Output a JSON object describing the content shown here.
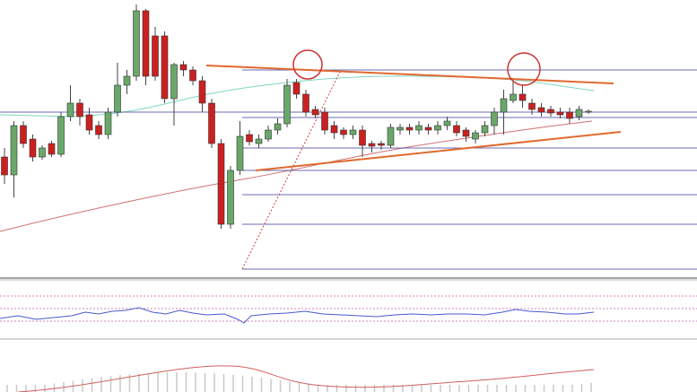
{
  "chart_data": {
    "type": "candlestick",
    "ylim": [
      0,
      310
    ],
    "up_color": "#6aa86a",
    "down_color": "#cc2020",
    "open": [
      135,
      115,
      170,
      155,
      135,
      150,
      138,
      180,
      195,
      182,
      170,
      160,
      185,
      215,
      225,
      298,
      270,
      270,
      200,
      238,
      232,
      220,
      195,
      150,
      60,
      120,
      160,
      150,
      155,
      165,
      172,
      218,
      205,
      188,
      185,
      170,
      165,
      160,
      165,
      150,
      150,
      148,
      165,
      168,
      165,
      168,
      165,
      170,
      170,
      165,
      155,
      162,
      170,
      185,
      198,
      205,
      195,
      190,
      188,
      185,
      185,
      180,
      185
    ],
    "close": [
      115,
      170,
      150,
      135,
      145,
      138,
      180,
      195,
      180,
      165,
      160,
      185,
      215,
      225,
      298,
      225,
      225,
      200,
      238,
      232,
      220,
      195,
      150,
      60,
      120,
      158,
      152,
      155,
      165,
      172,
      215,
      205,
      185,
      182,
      165,
      162,
      160,
      165,
      148,
      147,
      148,
      168,
      168,
      165,
      170,
      165,
      170,
      175,
      162,
      158,
      162,
      170,
      185,
      200,
      205,
      198,
      188,
      185,
      184,
      182,
      178,
      188,
      186
    ],
    "high": [
      145,
      175,
      175,
      160,
      148,
      153,
      185,
      215,
      200,
      190,
      175,
      190,
      240,
      232,
      305,
      300,
      280,
      275,
      240,
      242,
      236,
      225,
      200,
      155,
      125,
      175,
      165,
      160,
      170,
      178,
      222,
      222,
      210,
      192,
      190,
      175,
      168,
      170,
      170,
      153,
      153,
      172,
      172,
      172,
      175,
      172,
      175,
      180,
      175,
      168,
      165,
      175,
      190,
      210,
      220,
      215,
      200,
      195,
      192,
      190,
      190,
      192,
      188
    ],
    "low": [
      105,
      90,
      145,
      130,
      132,
      135,
      135,
      175,
      170,
      160,
      155,
      155,
      180,
      205,
      220,
      215,
      220,
      195,
      170,
      225,
      215,
      185,
      145,
      55,
      55,
      115,
      148,
      145,
      152,
      160,
      168,
      200,
      180,
      178,
      160,
      155,
      155,
      155,
      135,
      140,
      143,
      145,
      160,
      160,
      160,
      160,
      160,
      165,
      158,
      152,
      150,
      158,
      160,
      160,
      195,
      190,
      182,
      180,
      180,
      178,
      172,
      176,
      183
    ]
  }
}
